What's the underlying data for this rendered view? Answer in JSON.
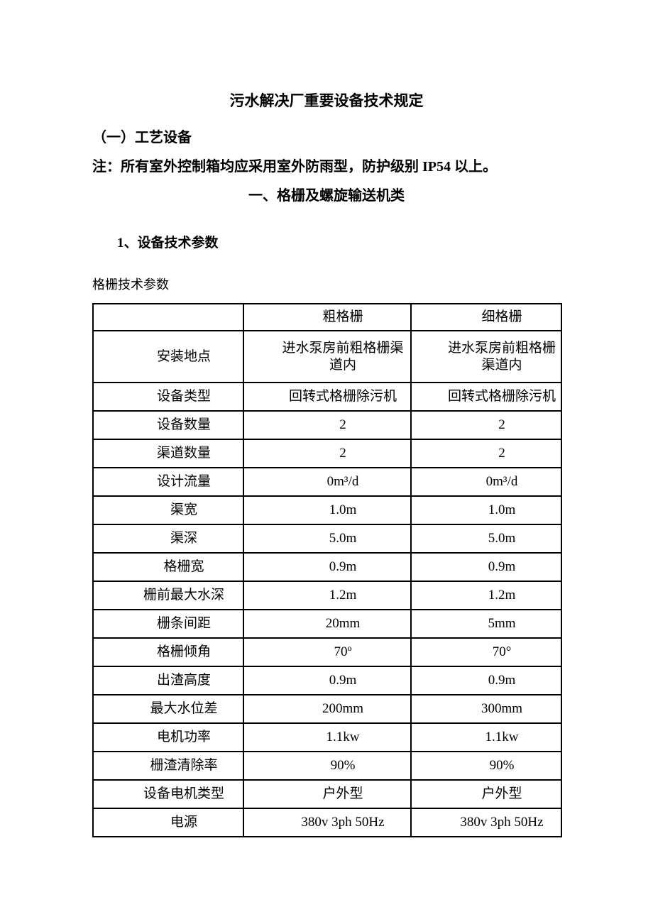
{
  "colors": {
    "text": "#000000",
    "border": "#000000",
    "background": "#ffffff"
  },
  "doc": {
    "title": "污水解决厂重要设备技术规定",
    "section1": "（一）工艺设备",
    "note": "注：所有室外控制箱均应采用室外防雨型，防护级别 IP54 以上。",
    "section2": "一、格栅及螺旋输送机类",
    "subsection1": "1、设备技术参数",
    "table_caption": "格栅技术参数"
  },
  "table": {
    "header": [
      "",
      "粗格栅",
      "细格栅"
    ],
    "rows": [
      {
        "label": "安装地点",
        "coarse": "进水泵房前粗格栅渠道内",
        "fine": "进水泵房前粗格栅渠道内"
      },
      {
        "label": "设备类型",
        "coarse": "回转式格栅除污机",
        "fine": "回转式格栅除污机"
      },
      {
        "label": "设备数量",
        "coarse": "2",
        "fine": "2"
      },
      {
        "label": "渠道数量",
        "coarse": "2",
        "fine": "2"
      },
      {
        "label": "设计流量",
        "coarse": "0m³/d",
        "fine": "0m³/d"
      },
      {
        "label": "渠宽",
        "coarse": "1.0m",
        "fine": "1.0m"
      },
      {
        "label": "渠深",
        "coarse": "5.0m",
        "fine": "5.0m"
      },
      {
        "label": "格栅宽",
        "coarse": "0.9m",
        "fine": "0.9m"
      },
      {
        "label": "栅前最大水深",
        "coarse": "1.2m",
        "fine": "1.2m"
      },
      {
        "label": "栅条间距",
        "coarse": "20mm",
        "fine": "5mm"
      },
      {
        "label": "格栅倾角",
        "coarse": "70º",
        "fine": "70°"
      },
      {
        "label": "出渣高度",
        "coarse": "0.9m",
        "fine": "0.9m"
      },
      {
        "label": "最大水位差",
        "coarse": "200mm",
        "fine": "300mm"
      },
      {
        "label": "电机功率",
        "coarse": "1.1kw",
        "fine": "1.1kw"
      },
      {
        "label": "栅渣清除率",
        "coarse": "90%",
        "fine": "90%"
      },
      {
        "label": "设备电机类型",
        "coarse": "户外型",
        "fine": "户外型"
      },
      {
        "label": "电源",
        "coarse": "380v 3ph 50Hz",
        "fine": "380v 3ph 50Hz"
      }
    ]
  }
}
